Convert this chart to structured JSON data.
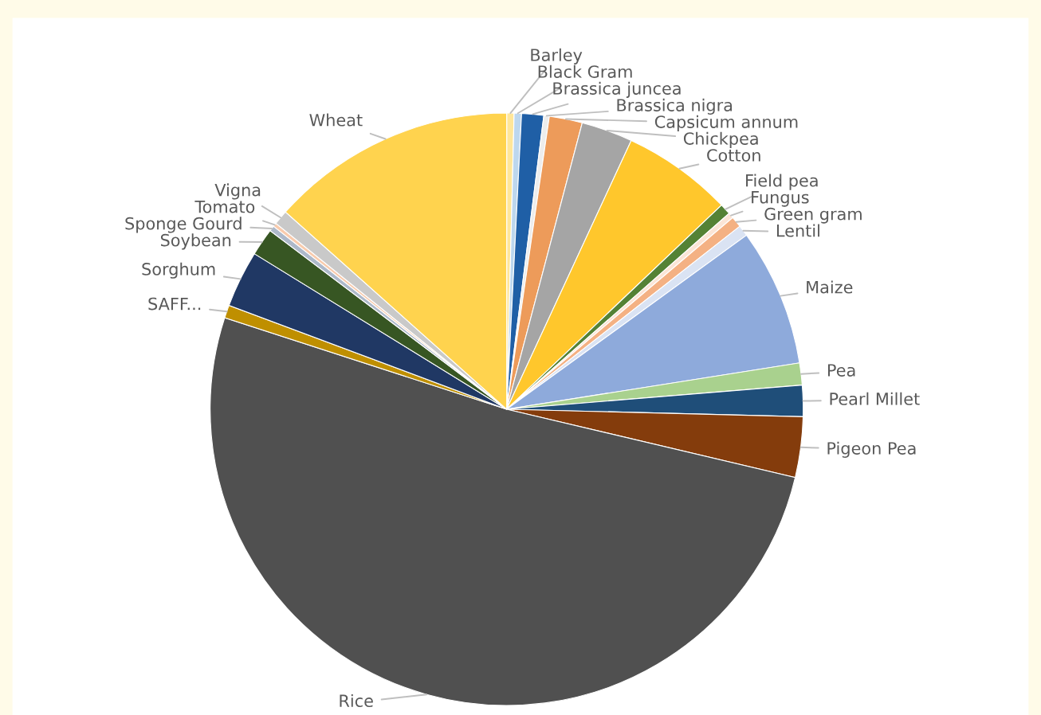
{
  "chart_data": {
    "type": "pie",
    "categories": [
      "Barley",
      "Black Gram",
      "Brassica juncea",
      "Brassica nigra",
      "Capsicum annum",
      "Chickpea",
      "Cotton",
      "Field pea",
      "Fungus",
      "Green gram",
      "Lentil",
      "Maize",
      "Pea",
      "Pearl Millet",
      "Pigeon Pea",
      "Rice",
      "SAFF...",
      "Sorghum",
      "Soybean",
      "Sponge Gourd",
      "Tomato",
      "Vigna",
      "Wheat"
    ],
    "values": [
      0.4,
      0.4,
      1.2,
      0.3,
      1.8,
      2.8,
      6.0,
      0.6,
      0.3,
      0.6,
      0.6,
      7.5,
      1.2,
      1.7,
      3.3,
      51.3,
      0.7,
      3.1,
      1.5,
      0.3,
      0.2,
      0.8,
      13.4
    ],
    "colors": [
      "#ffe699",
      "#bdd7ee",
      "#1f5fa6",
      "#ededed",
      "#ed9b5a",
      "#a5a5a5",
      "#ffc72c",
      "#548235",
      "#fbe5d6",
      "#f4b183",
      "#dae3f3",
      "#8eaadb",
      "#a9d18e",
      "#1f4e79",
      "#843c0c",
      "#505050",
      "#bf8f00",
      "#203864",
      "#375623",
      "#adb9ca",
      "#f8cbad",
      "#c9c9c9",
      "#ffd34e"
    ]
  }
}
